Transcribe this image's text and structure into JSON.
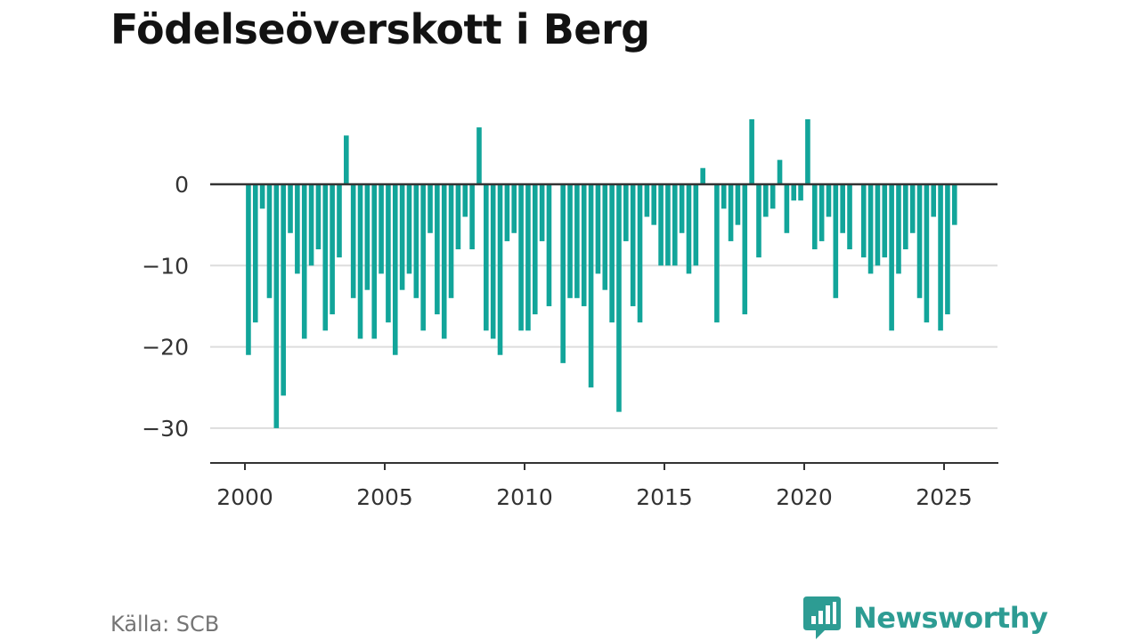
{
  "header": {
    "title": "Födelseöverskott i Berg"
  },
  "footer": {
    "source": "Källa: SCB",
    "brand": "Newsworthy"
  },
  "colors": {
    "bar": "#12a59a",
    "zero_line": "#333333",
    "grid": "#dddddd",
    "brand": "#2d9c93"
  },
  "chart_data": {
    "type": "bar",
    "title": "Födelseöverskott i Berg",
    "xlabel": "",
    "ylabel": "",
    "frequency": "quarterly",
    "start": "2000-Q1",
    "x_ticks": [
      "2000",
      "2005",
      "2010",
      "2015",
      "2020",
      "2025"
    ],
    "y_ticks": [
      0,
      -10,
      -20,
      -30
    ],
    "y_tick_labels": [
      "0",
      "−10",
      "−20",
      "−30"
    ],
    "ylim": [
      -35,
      9
    ],
    "grid": true,
    "legend": "none",
    "values": [
      -21,
      -17,
      -3,
      -14,
      -30,
      -26,
      -6,
      -11,
      -19,
      -10,
      -8,
      -18,
      -16,
      -9,
      6,
      -14,
      -19,
      -13,
      -19,
      -11,
      -17,
      -21,
      -13,
      -11,
      -14,
      -18,
      -6,
      -16,
      -19,
      -14,
      -8,
      -4,
      -8,
      7,
      -18,
      -19,
      -21,
      -7,
      -6,
      -18,
      -18,
      -16,
      -7,
      -15,
      0,
      -22,
      -14,
      -14,
      -15,
      -25,
      -11,
      -13,
      -17,
      -28,
      -7,
      -15,
      -17,
      -4,
      -5,
      -10,
      -10,
      -10,
      -6,
      -11,
      -10,
      2,
      0,
      -17,
      -3,
      -7,
      -5,
      -16,
      8,
      -9,
      -4,
      -3,
      3,
      -6,
      -2,
      -2,
      8,
      -8,
      -7,
      -4,
      -14,
      -6,
      -8,
      0,
      -9,
      -11,
      -10,
      -9,
      -18,
      -11,
      -8,
      -6,
      -14,
      -17,
      -4,
      -18,
      -16,
      -5
    ]
  }
}
